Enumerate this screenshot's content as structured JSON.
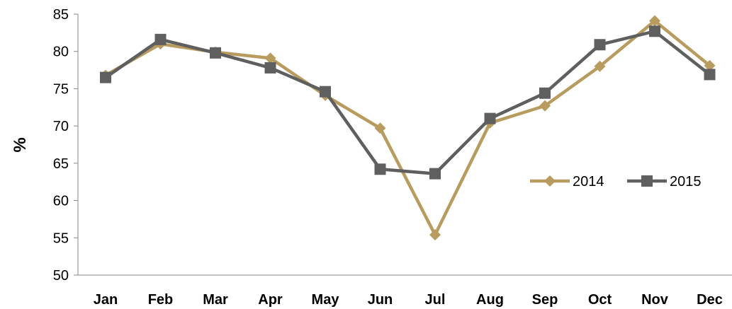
{
  "chart_data": {
    "type": "line",
    "categories": [
      "Jan",
      "Feb",
      "Mar",
      "Apr",
      "May",
      "Jun",
      "Jul",
      "Aug",
      "Sep",
      "Oct",
      "Nov",
      "Dec"
    ],
    "series": [
      {
        "name": "2014",
        "color": "#B89B5E",
        "marker": "diamond",
        "values": [
          76.8,
          81.0,
          79.9,
          79.1,
          74.1,
          69.7,
          55.4,
          70.4,
          72.7,
          78.0,
          84.1,
          78.1
        ]
      },
      {
        "name": "2015",
        "color": "#5F5F5F",
        "marker": "square",
        "values": [
          76.5,
          81.6,
          79.8,
          77.8,
          74.6,
          64.2,
          63.6,
          71.0,
          74.4,
          80.9,
          82.7,
          76.9
        ]
      }
    ],
    "ylabel": "%",
    "xlabel": "",
    "ylim": [
      50,
      85
    ],
    "yticks": [
      50,
      55,
      60,
      65,
      70,
      75,
      80,
      85
    ],
    "grid": false,
    "legend_position": "right"
  }
}
